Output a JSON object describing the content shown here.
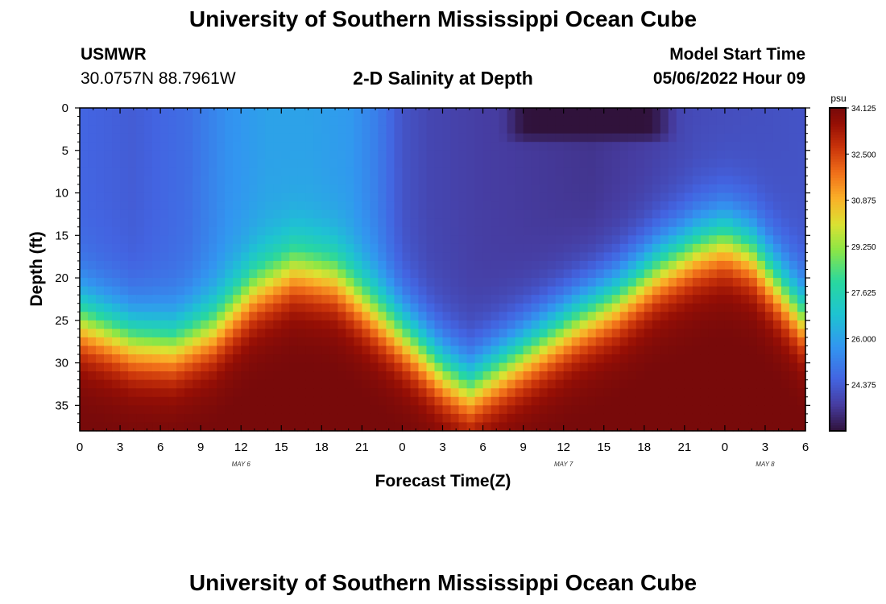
{
  "header": {
    "title": "University of Southern Mississippi Ocean Cube",
    "station": "USMWR",
    "coords": "30.0757N  88.7961W",
    "subtitle": "2-D Salinity at Depth",
    "model_start_label": "Model Start Time",
    "model_start_value": "05/06/2022 Hour 09"
  },
  "footer": {
    "title": "University of Southern Mississippi Ocean Cube"
  },
  "chart_data": {
    "type": "heatmap",
    "title": "2-D Salinity at Depth",
    "xlabel": "Forecast Time(Z)",
    "ylabel": "Depth (ft)",
    "x_ticks": [
      "0",
      "3",
      "6",
      "9",
      "12",
      "15",
      "18",
      "21",
      "0",
      "3",
      "6",
      "9",
      "12",
      "15",
      "18",
      "21",
      "0",
      "3",
      "6"
    ],
    "x_range_hours": [
      0,
      54
    ],
    "day_labels": [
      {
        "label": "MAY 6",
        "hour": 12
      },
      {
        "label": "MAY 7",
        "hour": 36
      },
      {
        "label": "MAY 8",
        "hour": 51
      }
    ],
    "y_ticks": [
      "0",
      "5",
      "10",
      "15",
      "20",
      "25",
      "30",
      "35"
    ],
    "ylim": [
      0,
      38
    ],
    "colorbar": {
      "unit": "psu",
      "min": 22.75,
      "max": 34.125,
      "labels": [
        "34.125",
        "32.500",
        "30.875",
        "29.250",
        "27.625",
        "26.000",
        "24.375"
      ]
    },
    "halocline_depth_ft": [
      {
        "hour": 0,
        "depth": 25
      },
      {
        "hour": 4,
        "depth": 27.5
      },
      {
        "hour": 7,
        "depth": 28
      },
      {
        "hour": 10,
        "depth": 26
      },
      {
        "hour": 13,
        "depth": 21.5
      },
      {
        "hour": 16,
        "depth": 19
      },
      {
        "hour": 19,
        "depth": 20
      },
      {
        "hour": 22,
        "depth": 24
      },
      {
        "hour": 25,
        "depth": 28
      },
      {
        "hour": 27,
        "depth": 31
      },
      {
        "hour": 29,
        "depth": 33
      },
      {
        "hour": 31,
        "depth": 31
      },
      {
        "hour": 34,
        "depth": 28
      },
      {
        "hour": 37,
        "depth": 25
      },
      {
        "hour": 40,
        "depth": 22.5
      },
      {
        "hour": 43,
        "depth": 19
      },
      {
        "hour": 46,
        "depth": 16.5
      },
      {
        "hour": 48,
        "depth": 15.5
      },
      {
        "hour": 50,
        "depth": 17
      },
      {
        "hour": 52,
        "depth": 21
      },
      {
        "hour": 54,
        "depth": 25
      }
    ],
    "surface_salinity_psu": [
      {
        "hour": 0,
        "value": 24.6
      },
      {
        "hour": 4,
        "value": 24.4
      },
      {
        "hour": 8,
        "value": 24.8
      },
      {
        "hour": 11,
        "value": 25.6
      },
      {
        "hour": 14,
        "value": 26.0
      },
      {
        "hour": 17,
        "value": 26.0
      },
      {
        "hour": 20,
        "value": 25.8
      },
      {
        "hour": 22,
        "value": 25.2
      },
      {
        "hour": 24,
        "value": 24.2
      },
      {
        "hour": 26,
        "value": 23.9
      },
      {
        "hour": 30,
        "value": 23.7
      },
      {
        "hour": 34,
        "value": 23.6
      },
      {
        "hour": 38,
        "value": 23.5
      },
      {
        "hour": 42,
        "value": 23.7
      },
      {
        "hour": 46,
        "value": 24.0
      },
      {
        "hour": 50,
        "value": 24.1
      },
      {
        "hour": 54,
        "value": 24.2
      }
    ],
    "low_salinity_patch": {
      "hour_start": 31,
      "hour_end": 45,
      "depth_start": 0,
      "depth_end": 4,
      "min_value": 22.75
    }
  }
}
